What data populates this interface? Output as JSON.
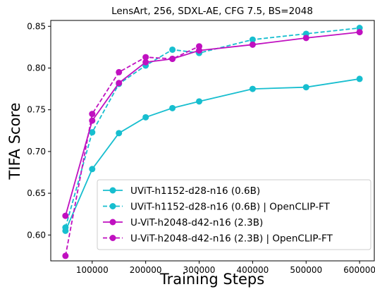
{
  "chart_data": {
    "type": "line",
    "title": "LensArt, 256, SDXL-AE, CFG 7.5, BS=2048",
    "xlabel": "Training Steps",
    "ylabel": "TIFA Score",
    "xlim": [
      22500,
      627500
    ],
    "ylim": [
      0.569,
      0.857
    ],
    "xticks": [
      100000,
      200000,
      300000,
      400000,
      500000,
      600000
    ],
    "xtick_labels": [
      "100000",
      "200000",
      "300000",
      "400000",
      "500000",
      "600000"
    ],
    "yticks": [
      0.6,
      0.65,
      0.7,
      0.75,
      0.8,
      0.85
    ],
    "ytick_labels": [
      "0.60",
      "0.65",
      "0.70",
      "0.75",
      "0.80",
      "0.85"
    ],
    "grid": false,
    "legend_position": "bottom-right",
    "series": [
      {
        "name": "UViT-h1152-d28-n16 (0.6B)",
        "color": "#17becf",
        "dash": "solid",
        "x": [
          50000,
          100000,
          150000,
          200000,
          250000,
          300000,
          400000,
          500000,
          600000
        ],
        "y": [
          0.605,
          0.679,
          0.722,
          0.741,
          0.752,
          0.76,
          0.775,
          0.777,
          0.787
        ]
      },
      {
        "name": "UViT-h1152-d28-n16 (0.6B) | OpenCLIP-FT",
        "color": "#17becf",
        "dash": "dashed",
        "x": [
          50000,
          100000,
          150000,
          200000,
          250000,
          300000,
          400000,
          500000,
          600000
        ],
        "y": [
          0.609,
          0.723,
          0.781,
          0.803,
          0.822,
          0.818,
          0.834,
          0.841,
          0.848
        ]
      },
      {
        "name": "U-ViT-h2048-d42-n16 (2.3B)",
        "color": "#c010c0",
        "dash": "solid",
        "x": [
          50000,
          100000,
          150000,
          200000,
          250000,
          300000,
          400000,
          500000,
          600000
        ],
        "y": [
          0.623,
          0.737,
          0.782,
          0.807,
          0.811,
          0.821,
          0.828,
          0.836,
          0.843
        ]
      },
      {
        "name": "U-ViT-h2048-d42-n16 (2.3B) | OpenCLIP-FT",
        "color": "#c010c0",
        "dash": "dashed",
        "x": [
          50000,
          100000,
          150000,
          200000,
          250000,
          300000
        ],
        "y": [
          0.575,
          0.745,
          0.795,
          0.813,
          0.811,
          0.826
        ]
      }
    ]
  }
}
